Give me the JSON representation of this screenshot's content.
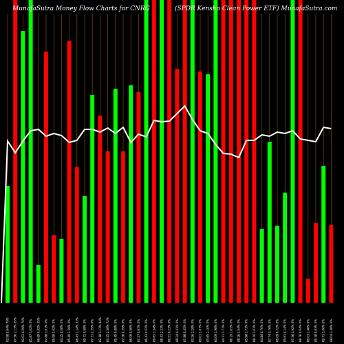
{
  "chart_data": {
    "type": "bar",
    "title_left": "MunafaSutra  Money Flow  Charts for CNRG",
    "title_right": "(SPDR Kensho  Clean  Power ETF) MunafaSutra.com",
    "colors": {
      "up": "#00ff00",
      "down": "#ff0000",
      "line": "#ffffff",
      "grid": "#8b5a00",
      "background": "#000000"
    },
    "categories": [
      "28 Jul 2025",
      "25 Jul 2025",
      "24 Jul 2025",
      "23 Jul 2025",
      "22 Jul 2025",
      "21 Jul 2025",
      "18 Jul 2025",
      "17 Jul 2025",
      "16 Jul 2025",
      "15 Jul 2025",
      "14 Jul 2025",
      "11 Jul 2025",
      "10 Jul 2025",
      "09 Jul 2025",
      "08 Jul 2025",
      "07 Jul 2025",
      "03 Jul 2025",
      "02 Jul 2025",
      "01 Jul 2025",
      "30 Jun 2025",
      "27 Jun 2025",
      "26 Jun 2025",
      "25 Jun 2025",
      "24 Jun 2025",
      "23 Jun 2025",
      "20 Jun 2025",
      "18 Jun 2025",
      "17 Jun 2025",
      "16 Jun 2025",
      "13 Jun 2025",
      "12 Jun 2025",
      "11 Jun 2025",
      "10 Jun 2025",
      "09 Jun 2025",
      "06 Jun 2025",
      "05 Jun 2025",
      "04 Jun 2025",
      "03 Jun 2025",
      "02 Jun 2025",
      "30 May 2025",
      "29 May 2025",
      "28 May 2025",
      "27 May 2025"
    ],
    "x_tick_labels": [
      "83.98 0.94% 79%",
      "87.56 2.13% 35%",
      "90.03 0.59% 70%",
      "85.87 1.02% 0%",
      "86.69 0.92% 35%",
      "87.88 1.61% 0%",
      "85.99 1.02% 0%",
      "84.25 0.08% 0%",
      "85.49 1.39% 0%",
      "88.43 1.24% 33%",
      "89.71 0.99% 0%",
      "87.31 2.35% 0%",
      "82.48 1.13% 44%",
      "83.25 2.58% 72%",
      "85.45 0.89% 0%",
      "87.36 0.39% 0%",
      "86.08 0.56% 0%",
      "87.27 0.67% 0%",
      "86.43 0.52% 0%",
      "89.61 1.34% 0%",
      "88.43 2.23% 0%",
      "86.51 0.23% 0%",
      "88.24 0.41% 0%",
      "87.88 0.45% 0%",
      "83.26 2.28% 0%",
      "89.01 1.67% 0%",
      "83.65 2.10% 0%",
      "84.09 1.98% 0%",
      "84.11 1.71% 0%",
      "86.19 1.61% 0%",
      "88.26 1.54% 0%",
      "85.98 1.73% 0%",
      "88.10 1.03% 0%",
      "84.84 0.70% 0%",
      "87.74 3.76% 0%",
      "86.09 0.72% 0%",
      "85.61 0.14% 0%",
      "87.36 1.92% 0%",
      "88.76 0.04% 0%",
      "86.03 1.48% 0%",
      "85.38 0.63% 0%",
      "89.71 1.06% 0%",
      "88.04 1.48% 0%"
    ],
    "series": [
      {
        "kind": "bars",
        "values": [
          {
            "v": 170,
            "c": "up"
          },
          {
            "v": 600,
            "c": "down"
          },
          {
            "v": 395,
            "c": "up"
          },
          {
            "v": 600,
            "c": "up"
          },
          {
            "v": 55,
            "c": "up"
          },
          {
            "v": 365,
            "c": "down"
          },
          {
            "v": 98,
            "c": "down"
          },
          {
            "v": 93,
            "c": "up"
          },
          {
            "v": 380,
            "c": "down"
          },
          {
            "v": 197,
            "c": "down"
          },
          {
            "v": 155,
            "c": "up"
          },
          {
            "v": 302,
            "c": "up"
          },
          {
            "v": 272,
            "c": "down"
          },
          {
            "v": 220,
            "c": "down"
          },
          {
            "v": 311,
            "c": "up"
          },
          {
            "v": 220,
            "c": "down"
          },
          {
            "v": 316,
            "c": "up"
          },
          {
            "v": 306,
            "c": "down"
          },
          {
            "v": 600,
            "c": "up"
          },
          {
            "v": 600,
            "c": "down"
          },
          {
            "v": 600,
            "c": "up"
          },
          {
            "v": 600,
            "c": "down"
          },
          {
            "v": 340,
            "c": "down"
          },
          {
            "v": 600,
            "c": "down"
          },
          {
            "v": 600,
            "c": "up"
          },
          {
            "v": 336,
            "c": "down"
          },
          {
            "v": 332,
            "c": "up"
          },
          {
            "v": 600,
            "c": "up"
          },
          {
            "v": 600,
            "c": "down"
          },
          {
            "v": 600,
            "c": "down"
          },
          {
            "v": 600,
            "c": "down"
          },
          {
            "v": 600,
            "c": "down"
          },
          {
            "v": 600,
            "c": "down"
          },
          {
            "v": 107,
            "c": "up"
          },
          {
            "v": 234,
            "c": "up"
          },
          {
            "v": 112,
            "c": "up"
          },
          {
            "v": 160,
            "c": "up"
          },
          {
            "v": 600,
            "c": "up"
          },
          {
            "v": 600,
            "c": "down"
          },
          {
            "v": 35,
            "c": "down"
          },
          {
            "v": 116,
            "c": "down"
          },
          {
            "v": 199,
            "c": "up"
          },
          {
            "v": 113,
            "c": "down"
          }
        ]
      },
      {
        "kind": "line",
        "values": [
          235,
          218,
          235,
          250,
          252,
          242,
          246,
          243,
          233,
          236,
          252,
          252,
          248,
          254,
          246,
          255,
          233,
          245,
          241,
          265,
          263,
          264,
          275,
          286,
          266,
          250,
          246,
          230,
          217,
          216,
          211,
          236,
          236,
          244,
          242,
          248,
          246,
          250,
          238,
          236,
          234,
          255,
          253
        ]
      }
    ],
    "ylim": [
      0,
      440
    ]
  }
}
